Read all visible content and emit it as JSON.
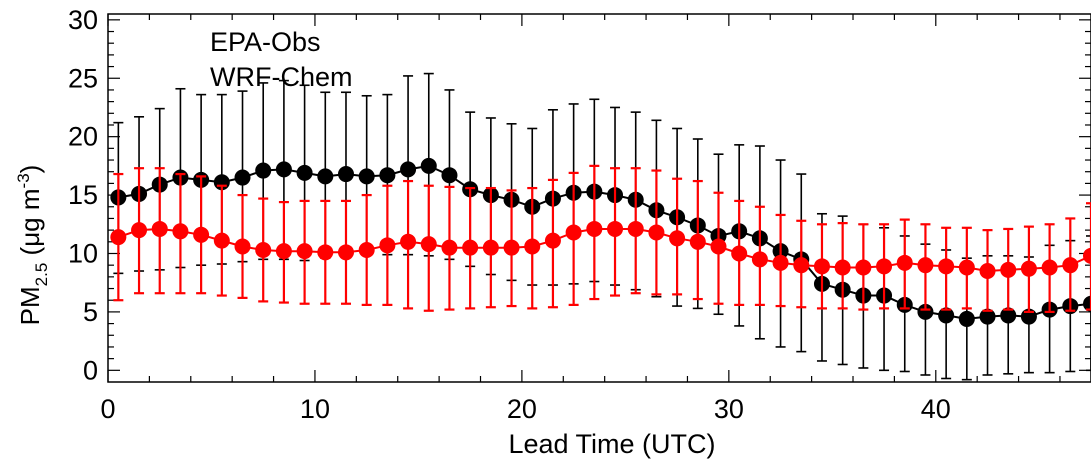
{
  "chart_data": {
    "type": "line",
    "title": "",
    "xlabel": "Lead Time (UTC)",
    "ylabel_main": "PM",
    "ylabel_sub": "2.5",
    "ylabel_units_pre": " (μg m",
    "ylabel_units_sup": "-3",
    "ylabel_units_post": ")",
    "xlim": [
      0,
      47.5
    ],
    "ylim": [
      -1,
      30.5
    ],
    "x_ticks": [
      0,
      10,
      20,
      30,
      40
    ],
    "y_ticks": [
      0,
      5,
      10,
      15,
      20,
      25,
      30
    ],
    "x": [
      0.5,
      1.5,
      2.5,
      3.5,
      4.5,
      5.5,
      6.5,
      7.5,
      8.5,
      9.5,
      10.5,
      11.5,
      12.5,
      13.5,
      14.5,
      15.5,
      16.5,
      17.5,
      18.5,
      19.5,
      20.5,
      21.5,
      22.5,
      23.5,
      24.5,
      25.5,
      26.5,
      27.5,
      28.5,
      29.5,
      30.5,
      31.5,
      32.5,
      33.5,
      34.5,
      35.5,
      36.5,
      37.5,
      38.5,
      39.5,
      40.5,
      41.5,
      42.5,
      43.5,
      44.5,
      45.5,
      46.5,
      47.5
    ],
    "series": [
      {
        "name": "EPA-Obs",
        "color": "#000000",
        "values": [
          14.8,
          15.1,
          15.9,
          16.5,
          16.3,
          16.1,
          16.5,
          17.1,
          17.2,
          16.9,
          16.6,
          16.8,
          16.6,
          16.7,
          17.2,
          17.5,
          16.7,
          15.5,
          15.0,
          14.6,
          14.0,
          14.7,
          15.2,
          15.3,
          15.0,
          14.6,
          13.7,
          13.1,
          12.4,
          11.5,
          11.9,
          11.3,
          10.2,
          9.5,
          7.4,
          6.9,
          6.4,
          6.4,
          5.6,
          5.0,
          4.7,
          4.4,
          4.6,
          4.7,
          4.6,
          5.2,
          5.5,
          5.7
        ],
        "err_low": [
          8.3,
          8.5,
          8.6,
          8.8,
          9.0,
          9.1,
          9.3,
          9.5,
          9.5,
          9.4,
          9.6,
          9.8,
          9.9,
          9.9,
          9.9,
          9.8,
          9.5,
          8.9,
          8.2,
          7.7,
          7.3,
          7.3,
          7.4,
          7.6,
          7.3,
          6.9,
          6.3,
          5.5,
          5.3,
          4.8,
          3.8,
          2.7,
          2.0,
          1.6,
          0.8,
          0.5,
          0.2,
          0.0,
          -0.1,
          -0.4,
          -0.7,
          -0.8,
          -0.4,
          -0.3,
          -0.2,
          -0.2,
          -0.1,
          0.0
        ],
        "err_high": [
          21.2,
          21.7,
          22.4,
          24.1,
          23.6,
          23.6,
          23.9,
          24.6,
          24.8,
          24.4,
          23.8,
          23.8,
          23.5,
          23.6,
          25.2,
          25.4,
          24.0,
          22.1,
          21.6,
          21.1,
          20.7,
          22.3,
          22.8,
          23.2,
          22.5,
          22.1,
          21.4,
          20.7,
          19.8,
          18.5,
          19.3,
          19.2,
          18.0,
          16.8,
          13.4,
          13.2,
          12.5,
          12.2,
          11.5,
          10.8,
          10.3,
          9.6,
          9.8,
          9.8,
          9.7,
          10.7,
          11.1,
          11.5
        ]
      },
      {
        "name": "WRF-Chem",
        "color": "#ff0000",
        "values": [
          11.4,
          12.0,
          12.1,
          11.9,
          11.6,
          11.1,
          10.6,
          10.3,
          10.2,
          10.2,
          10.1,
          10.1,
          10.3,
          10.7,
          11.0,
          10.8,
          10.5,
          10.5,
          10.5,
          10.5,
          10.6,
          11.1,
          11.8,
          12.1,
          12.1,
          12.1,
          11.8,
          11.3,
          11.0,
          10.6,
          10.0,
          9.5,
          9.2,
          9.0,
          8.9,
          8.8,
          8.8,
          8.9,
          9.2,
          9.0,
          8.9,
          8.8,
          8.5,
          8.6,
          8.7,
          8.8,
          9.0,
          9.8
        ],
        "err_low": [
          6.0,
          6.6,
          6.6,
          6.6,
          6.6,
          6.4,
          6.2,
          5.9,
          5.8,
          5.7,
          5.7,
          5.7,
          5.6,
          5.6,
          5.3,
          5.1,
          5.2,
          5.3,
          5.4,
          5.5,
          5.3,
          5.4,
          5.6,
          6.1,
          6.4,
          6.6,
          6.5,
          6.5,
          6.1,
          5.7,
          5.6,
          5.6,
          5.5,
          5.4,
          5.3,
          5.3,
          5.2,
          5.3,
          5.3,
          5.2,
          5.2,
          5.3,
          5.1,
          5.2,
          5.0,
          5.0,
          5.1,
          5.2
        ],
        "err_high": [
          16.8,
          17.3,
          17.3,
          16.8,
          16.6,
          15.8,
          15.0,
          14.7,
          14.4,
          14.5,
          14.5,
          14.5,
          15.0,
          15.8,
          16.2,
          15.8,
          15.7,
          15.6,
          15.6,
          15.4,
          15.6,
          16.3,
          16.9,
          17.5,
          17.3,
          17.3,
          17.1,
          16.4,
          16.2,
          15.2,
          14.5,
          14.0,
          13.3,
          12.8,
          12.5,
          12.6,
          12.5,
          12.5,
          12.9,
          12.5,
          12.2,
          12.2,
          12.0,
          12.1,
          12.3,
          12.5,
          13.0,
          14.3
        ]
      }
    ],
    "legend": {
      "placement": "top-left"
    },
    "grid": false
  }
}
